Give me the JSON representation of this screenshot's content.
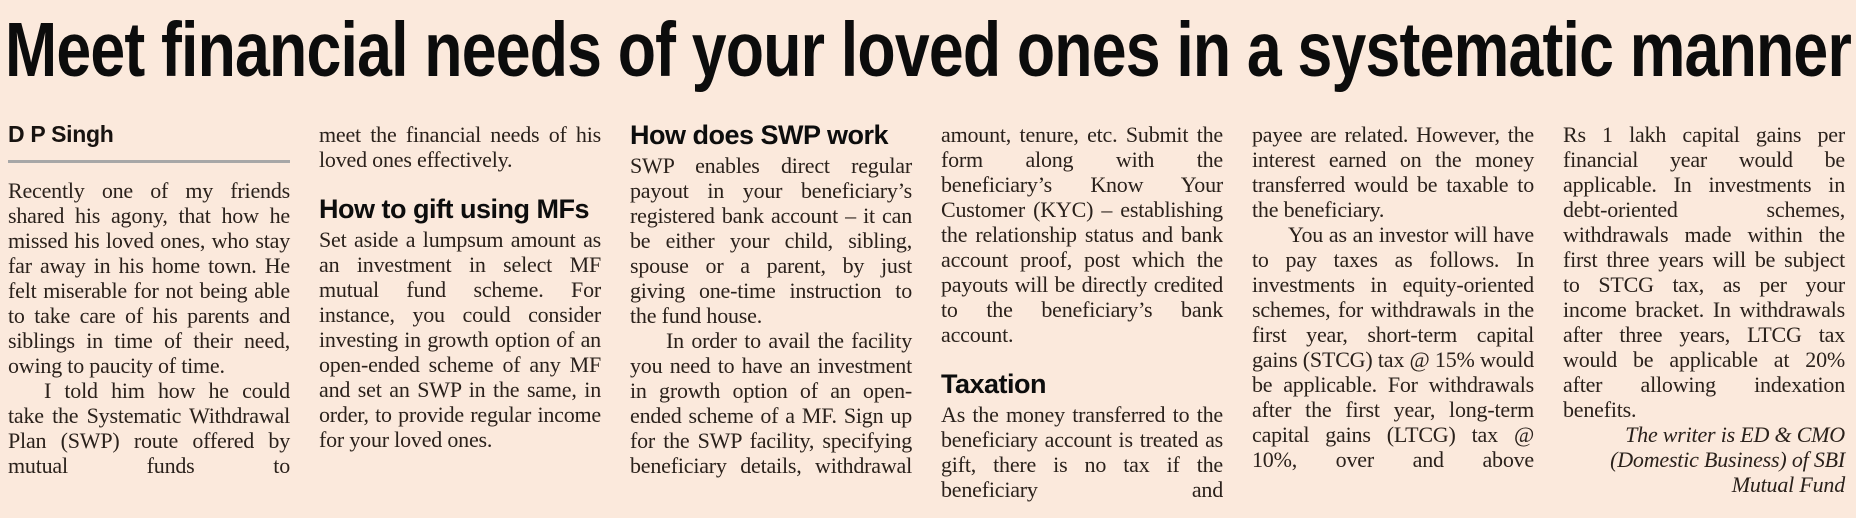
{
  "article": {
    "headline": "Meet financial needs of your loved ones in a systematic manner",
    "columns": {
      "col1": {
        "byline": "D P Singh",
        "p1": "Recently one of my friends shared his agony, that how he missed his loved ones, who stay far away in his home town. He felt miserable for not being able to take care of his parents and siblings in time of their need, owing to paucity of time.",
        "p2": "I told him how he could take the Systematic Withdrawal Plan (SWP) route offered by mutual funds to"
      },
      "col2": {
        "p1": "meet the financial needs of his loved ones effectively.",
        "heading": "How to gift using MFs",
        "p2": "Set aside a lumpsum amount as an investment in select MF mutual fund scheme. For instance, you could consider investing in growth option of an open-ended scheme of any MF and set an SWP in the same, in order, to provide regular income for your loved ones."
      },
      "col3": {
        "heading": "How does SWP work",
        "p1": "SWP enables direct regular payout in your beneficiary’s registered bank account – it can be either your child, sibling, spouse or a parent, by just giving one-time instruction to the fund house.",
        "p2": "In order to avail the facility you need to have an investment in growth option of an open-ended scheme of a MF. Sign up for the SWP facility, specifying beneficiary details, withdrawal"
      },
      "col4": {
        "p1": "amount, tenure, etc. Submit the form along with the beneficiary’s Know Your Customer (KYC) – establishing the relationship status and bank account proof, post which the payouts will be directly credited to the beneficiary’s bank account.",
        "heading": "Taxation",
        "p2": "As the money transferred to the beneficiary account is treated as gift, there is no tax if the beneficiary and"
      },
      "col5": {
        "p1": "payee are related. However, the interest earned on the money transferred would be taxable to the beneficiary.",
        "p2": "You as an investor will have to pay taxes as follows. In investments in equity-oriented schemes, for withdrawals in the first year, short-term capital gains (STCG) tax @ 15% would be applicable. For withdrawals after the first year, long-term capital gains (LTCG) tax @ 10%, over and above"
      },
      "col6": {
        "p1": "Rs 1 lakh capital gains per financial year would be applicable. In investments in debt-oriented schemes, withdrawals made within the first three years will be subject to STCG tax, as per your income bracket. In withdrawals after three years, LTCG tax would be applicable at 20% after allowing indexation benefits.",
        "attribution": "The writer is ED & CMO (Domestic Business) of SBI Mutual Fund"
      }
    }
  },
  "colors": {
    "page_background": "#fbe9dc",
    "body_text": "#2a211b",
    "headline_text": "#0c0c0c",
    "byline_rule": "#a7a7a7"
  }
}
